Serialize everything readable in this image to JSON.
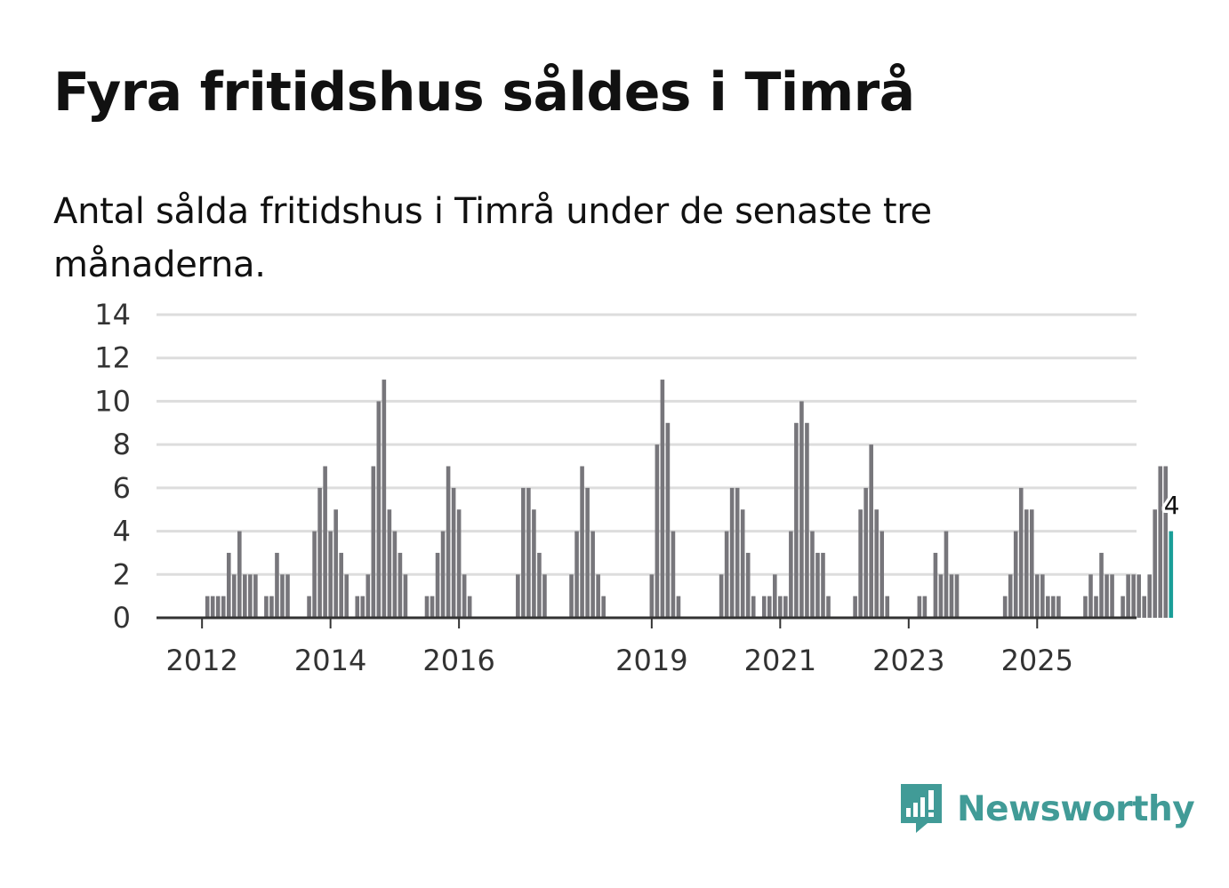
{
  "title": "Fyra fritidshus såldes i Timrå",
  "subtitle": "Antal sålda fritidshus i Timrå under de senaste tre månaderna.",
  "brand": {
    "name": "Newsworthy",
    "color": "#419b97"
  },
  "colors": {
    "bar": "#77767b",
    "highlight": "#1a9e98",
    "grid": "#dddddd",
    "axis": "#333333"
  },
  "chart_data": {
    "type": "bar",
    "title": "Fyra fritidshus såldes i Timrå",
    "subtitle": "Antal sålda fritidshus i Timrå under de senaste tre månaderna.",
    "xlabel": "",
    "ylabel": "",
    "ylim": [
      0,
      14
    ],
    "yticks": [
      0,
      2,
      4,
      6,
      8,
      10,
      12,
      14
    ],
    "grid": true,
    "start": "2011-05",
    "x_tick_labels": [
      "2012",
      "2014",
      "2016",
      "2019",
      "2021",
      "2023",
      "2025"
    ],
    "x_tick_months": [
      8,
      32,
      56,
      92,
      116,
      140,
      164
    ],
    "values": [
      0,
      0,
      0,
      0,
      0,
      0,
      0,
      0,
      0,
      1,
      1,
      1,
      1,
      3,
      2,
      4,
      2,
      2,
      2,
      0,
      1,
      1,
      3,
      2,
      2,
      0,
      0,
      0,
      1,
      4,
      6,
      7,
      4,
      5,
      3,
      2,
      0,
      1,
      1,
      2,
      7,
      10,
      11,
      5,
      4,
      3,
      2,
      0,
      0,
      0,
      1,
      1,
      3,
      4,
      7,
      6,
      5,
      2,
      1,
      0,
      0,
      0,
      0,
      0,
      0,
      0,
      0,
      2,
      6,
      6,
      5,
      3,
      2,
      0,
      0,
      0,
      0,
      2,
      4,
      7,
      6,
      4,
      2,
      1,
      0,
      0,
      0,
      0,
      0,
      0,
      0,
      0,
      2,
      8,
      11,
      9,
      4,
      1,
      0,
      0,
      0,
      0,
      0,
      0,
      0,
      2,
      4,
      6,
      6,
      5,
      3,
      1,
      0,
      1,
      1,
      2,
      1,
      1,
      4,
      9,
      10,
      9,
      4,
      3,
      3,
      1,
      0,
      0,
      0,
      0,
      1,
      5,
      6,
      8,
      5,
      4,
      1,
      0,
      0,
      0,
      0,
      0,
      1,
      1,
      0,
      3,
      2,
      4,
      2,
      2,
      0,
      0,
      0,
      0,
      0,
      0,
      0,
      0,
      1,
      2,
      4,
      6,
      5,
      5,
      2,
      2,
      1,
      1,
      1,
      0,
      0,
      0,
      0,
      1,
      2,
      1,
      3,
      2,
      2,
      0,
      1,
      2,
      2,
      2,
      1,
      2,
      5,
      7,
      7,
      4
    ],
    "highlight_last": true,
    "last_value_label": "4"
  }
}
